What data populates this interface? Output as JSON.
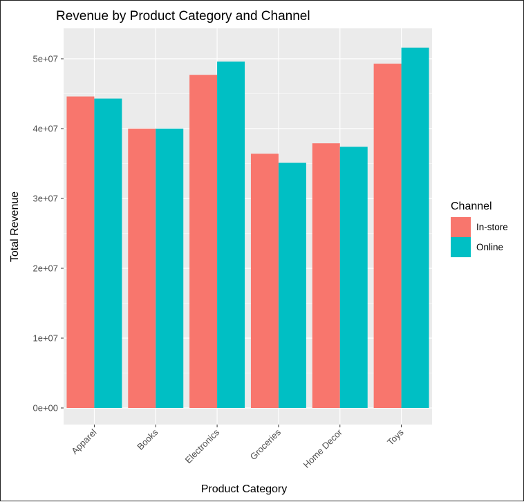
{
  "chart_data": {
    "type": "bar",
    "title": "Revenue by Product Category and Channel",
    "xlabel": "Product Category",
    "ylabel": "Total Revenue",
    "categories": [
      "Apparel",
      "Books",
      "Electronics",
      "Groceries",
      "Home Decor",
      "Toys"
    ],
    "series": [
      {
        "name": "In-store",
        "color": "#F8766D",
        "values": [
          44600000,
          40000000,
          47700000,
          36400000,
          37900000,
          49300000
        ]
      },
      {
        "name": "Online",
        "color": "#00BFC4",
        "values": [
          44300000,
          40000000,
          49600000,
          35100000,
          37400000,
          51600000
        ]
      }
    ],
    "ylim": [
      0,
      54000000
    ],
    "yticks": [
      0,
      10000000,
      20000000,
      30000000,
      40000000,
      50000000
    ],
    "ytick_labels": [
      "0e+00",
      "1e+07",
      "2e+07",
      "3e+07",
      "4e+07",
      "5e+07"
    ],
    "legend": {
      "title": "Channel",
      "placement": "right"
    },
    "grid": true,
    "panel_background": "#EBEBEB",
    "x_tick_rotation": 45
  }
}
